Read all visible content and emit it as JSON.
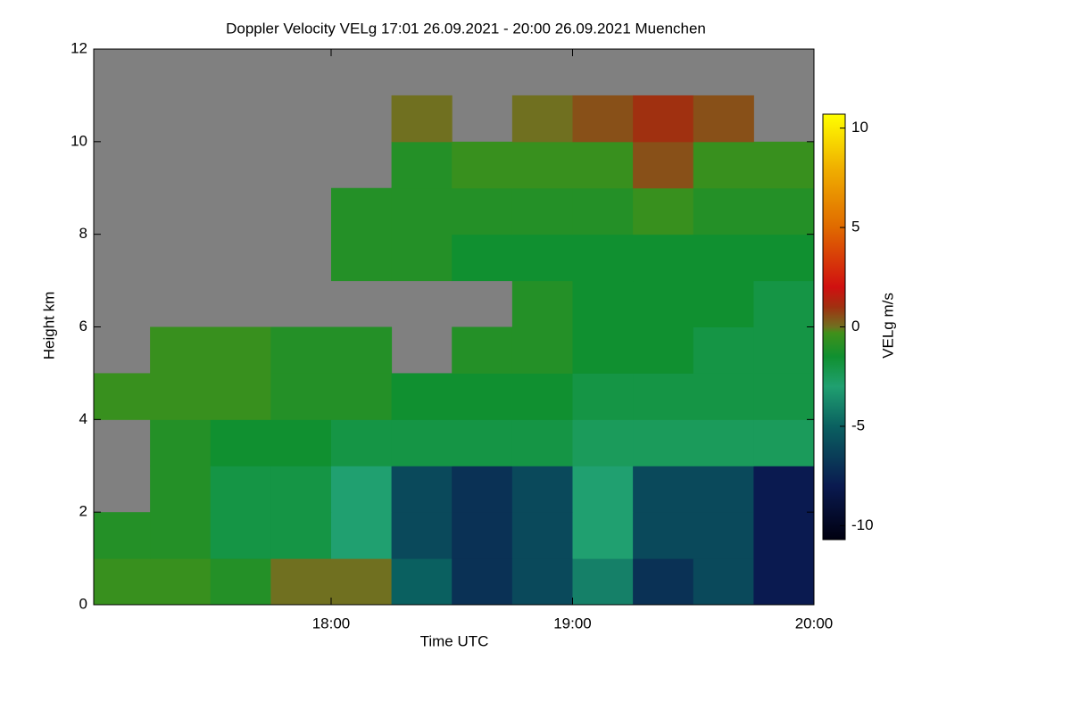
{
  "chart_data": {
    "type": "heatmap",
    "title": "Doppler Velocity VELg   17:01 26.09.2021 - 20:00 26.09.2021 Muenchen",
    "x_label": "Time UTC",
    "y_label": "Height km",
    "colorbar_label": "VELg m/s",
    "x": [
      17.0,
      17.25,
      17.5,
      17.75,
      18.0,
      18.25,
      18.5,
      18.75,
      19.0,
      19.25,
      19.5,
      19.75
    ],
    "y": [
      0,
      1,
      2,
      3,
      4,
      5,
      6,
      7,
      8,
      9,
      10,
      11
    ],
    "z": [
      [
        -0.5,
        -0.5,
        -1,
        0,
        0,
        -5,
        -7,
        -6,
        -4,
        -7,
        -6,
        -8
      ],
      [
        -1,
        -1,
        -2,
        -2,
        -3,
        -6,
        -7,
        -6,
        -3,
        -6,
        -6,
        -8
      ],
      [
        null,
        -1,
        -2,
        -2,
        -3,
        -6,
        -7,
        -6,
        -3,
        -6,
        -6,
        -8
      ],
      [
        null,
        -1,
        -1.5,
        -1.5,
        -2,
        -2,
        -2,
        -2,
        -2.5,
        -2.5,
        -2.5,
        -2.5
      ],
      [
        -0.5,
        -0.5,
        -0.5,
        -1,
        -1,
        -1.5,
        -1.5,
        -1.5,
        -2,
        -2,
        -2,
        -2
      ],
      [
        null,
        -0.5,
        -0.5,
        -1,
        -1,
        null,
        -1,
        -1,
        -1.5,
        -1.5,
        -2,
        -2
      ],
      [
        null,
        null,
        null,
        null,
        null,
        null,
        null,
        -1,
        -1.5,
        -1.5,
        -1.5,
        -2
      ],
      [
        null,
        null,
        null,
        null,
        -1,
        -1,
        -1.5,
        -1.5,
        -1.5,
        -1.5,
        -1.5,
        -1.5
      ],
      [
        null,
        null,
        null,
        null,
        -1,
        -1,
        -1,
        -1,
        -1,
        -0.5,
        -1,
        -1
      ],
      [
        null,
        null,
        null,
        null,
        null,
        -1,
        -0.5,
        -0.5,
        -0.5,
        0.5,
        -0.5,
        -0.5
      ],
      [
        null,
        null,
        null,
        null,
        null,
        0,
        null,
        0,
        0.5,
        1,
        0.5,
        null
      ],
      [
        null,
        null,
        null,
        null,
        null,
        null,
        null,
        null,
        null,
        null,
        null,
        null
      ]
    ],
    "xlim": [
      17.0167,
      20.0
    ],
    "xticks": [
      {
        "value": 18,
        "label": "18:00"
      },
      {
        "value": 19,
        "label": "19:00"
      },
      {
        "value": 20,
        "label": "20:00"
      }
    ],
    "ylim": [
      0,
      12
    ],
    "yticks": [
      0,
      2,
      4,
      6,
      8,
      10,
      12
    ],
    "clim": [
      -10.7,
      10.7
    ],
    "cticks": [
      -10,
      -5,
      0,
      5,
      10
    ]
  }
}
